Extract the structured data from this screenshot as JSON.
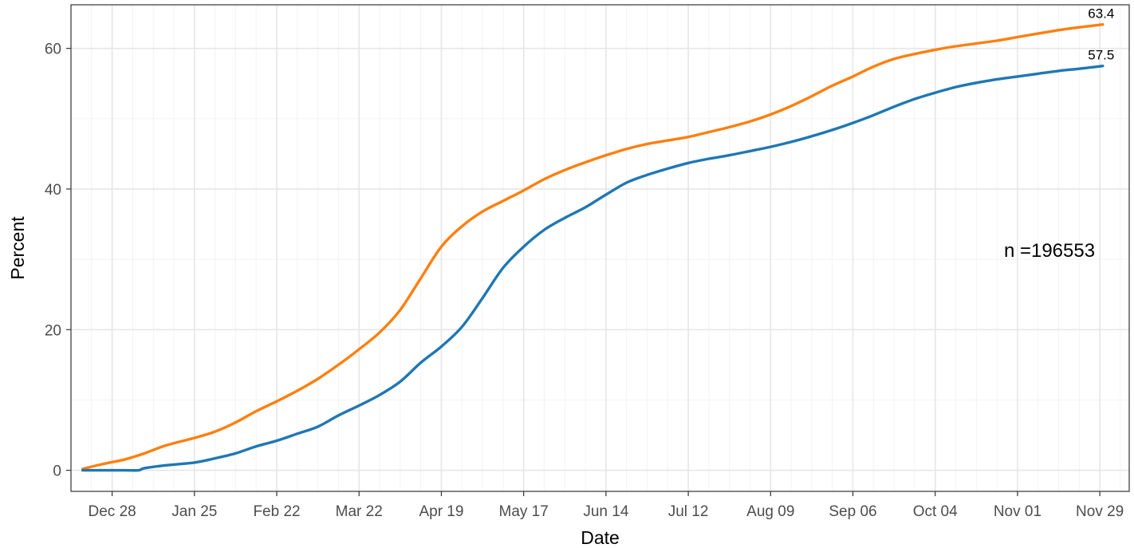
{
  "chart_data": {
    "type": "line",
    "title": "",
    "xlabel": "Date",
    "ylabel": "Percent",
    "x_tick_labels": [
      "Dec 28",
      "Jan 25",
      "Feb 22",
      "Mar 22",
      "Apr 19",
      "May 17",
      "Jun 14",
      "Jul 12",
      "Aug 09",
      "Sep 06",
      "Oct 04",
      "Nov 01",
      "Nov 29"
    ],
    "y_tick_labels": [
      "0",
      "20",
      "40",
      "60"
    ],
    "y_ticks": [
      0,
      20,
      40,
      60
    ],
    "ylim": [
      -3,
      66.2
    ],
    "xlim": [
      "2020-12-14",
      "2021-12-09"
    ],
    "x_ticks": [
      "2020-12-28",
      "2021-01-25",
      "2021-02-22",
      "2021-03-22",
      "2021-04-19",
      "2021-05-17",
      "2021-06-14",
      "2021-07-12",
      "2021-08-09",
      "2021-09-06",
      "2021-10-04",
      "2021-11-01",
      "2021-11-29"
    ],
    "grid": true,
    "legend": "none",
    "annotation": "n =196553",
    "series": [
      {
        "color": "#ff7f0e",
        "end_label": "63.4",
        "points": [
          [
            "2020-12-18",
            0.2
          ],
          [
            "2020-12-25",
            0.9
          ],
          [
            "2021-01-01",
            1.5
          ],
          [
            "2021-01-08",
            2.4
          ],
          [
            "2021-01-15",
            3.5
          ],
          [
            "2021-01-25",
            4.6
          ],
          [
            "2021-02-01",
            5.5
          ],
          [
            "2021-02-08",
            6.8
          ],
          [
            "2021-02-15",
            8.4
          ],
          [
            "2021-02-22",
            9.8
          ],
          [
            "2021-03-01",
            11.3
          ],
          [
            "2021-03-08",
            13.0
          ],
          [
            "2021-03-15",
            15.0
          ],
          [
            "2021-03-22",
            17.2
          ],
          [
            "2021-03-29",
            19.6
          ],
          [
            "2021-04-05",
            22.8
          ],
          [
            "2021-04-12",
            27.3
          ],
          [
            "2021-04-19",
            31.8
          ],
          [
            "2021-04-26",
            34.7
          ],
          [
            "2021-05-03",
            36.8
          ],
          [
            "2021-05-10",
            38.3
          ],
          [
            "2021-05-17",
            39.8
          ],
          [
            "2021-05-24",
            41.4
          ],
          [
            "2021-05-31",
            42.7
          ],
          [
            "2021-06-07",
            43.8
          ],
          [
            "2021-06-14",
            44.8
          ],
          [
            "2021-06-21",
            45.7
          ],
          [
            "2021-06-28",
            46.4
          ],
          [
            "2021-07-05",
            46.9
          ],
          [
            "2021-07-12",
            47.4
          ],
          [
            "2021-07-19",
            48.1
          ],
          [
            "2021-07-26",
            48.8
          ],
          [
            "2021-08-02",
            49.6
          ],
          [
            "2021-08-09",
            50.6
          ],
          [
            "2021-08-16",
            51.8
          ],
          [
            "2021-08-23",
            53.2
          ],
          [
            "2021-08-30",
            54.7
          ],
          [
            "2021-09-06",
            56.0
          ],
          [
            "2021-09-13",
            57.4
          ],
          [
            "2021-09-20",
            58.5
          ],
          [
            "2021-09-27",
            59.2
          ],
          [
            "2021-10-04",
            59.8
          ],
          [
            "2021-10-11",
            60.3
          ],
          [
            "2021-10-18",
            60.7
          ],
          [
            "2021-10-25",
            61.1
          ],
          [
            "2021-11-01",
            61.6
          ],
          [
            "2021-11-08",
            62.1
          ],
          [
            "2021-11-15",
            62.6
          ],
          [
            "2021-11-22",
            63.0
          ],
          [
            "2021-11-30",
            63.4
          ]
        ]
      },
      {
        "color": "#1f77b4",
        "end_label": "57.5",
        "points": [
          [
            "2020-12-18",
            0.0
          ],
          [
            "2020-12-25",
            0.0
          ],
          [
            "2021-01-01",
            0.0
          ],
          [
            "2021-01-06",
            0.0
          ],
          [
            "2021-01-08",
            0.3
          ],
          [
            "2021-01-15",
            0.7
          ],
          [
            "2021-01-25",
            1.1
          ],
          [
            "2021-02-01",
            1.7
          ],
          [
            "2021-02-08",
            2.4
          ],
          [
            "2021-02-15",
            3.4
          ],
          [
            "2021-02-22",
            4.2
          ],
          [
            "2021-03-01",
            5.2
          ],
          [
            "2021-03-08",
            6.2
          ],
          [
            "2021-03-15",
            7.8
          ],
          [
            "2021-03-22",
            9.2
          ],
          [
            "2021-03-29",
            10.7
          ],
          [
            "2021-04-05",
            12.6
          ],
          [
            "2021-04-12",
            15.3
          ],
          [
            "2021-04-19",
            17.6
          ],
          [
            "2021-04-26",
            20.4
          ],
          [
            "2021-05-03",
            24.5
          ],
          [
            "2021-05-10",
            28.8
          ],
          [
            "2021-05-17",
            31.8
          ],
          [
            "2021-05-24",
            34.2
          ],
          [
            "2021-05-31",
            35.9
          ],
          [
            "2021-06-07",
            37.4
          ],
          [
            "2021-06-14",
            39.2
          ],
          [
            "2021-06-21",
            40.9
          ],
          [
            "2021-06-28",
            42.0
          ],
          [
            "2021-07-05",
            42.9
          ],
          [
            "2021-07-12",
            43.7
          ],
          [
            "2021-07-19",
            44.3
          ],
          [
            "2021-07-26",
            44.8
          ],
          [
            "2021-08-02",
            45.4
          ],
          [
            "2021-08-09",
            46.0
          ],
          [
            "2021-08-16",
            46.7
          ],
          [
            "2021-08-23",
            47.5
          ],
          [
            "2021-08-30",
            48.4
          ],
          [
            "2021-09-06",
            49.4
          ],
          [
            "2021-09-13",
            50.5
          ],
          [
            "2021-09-20",
            51.7
          ],
          [
            "2021-09-27",
            52.8
          ],
          [
            "2021-10-04",
            53.7
          ],
          [
            "2021-10-11",
            54.5
          ],
          [
            "2021-10-18",
            55.1
          ],
          [
            "2021-10-25",
            55.6
          ],
          [
            "2021-11-01",
            56.0
          ],
          [
            "2021-11-08",
            56.4
          ],
          [
            "2021-11-15",
            56.8
          ],
          [
            "2021-11-22",
            57.1
          ],
          [
            "2021-11-30",
            57.5
          ]
        ]
      }
    ]
  }
}
